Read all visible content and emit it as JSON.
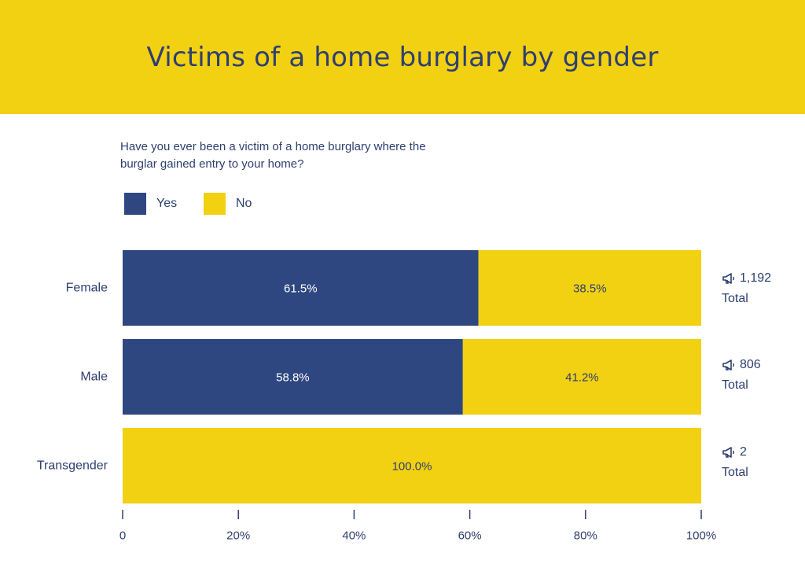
{
  "title": "Victims of a home burglary by gender",
  "question": "Have you ever been a victim of a home burglary where the burglar gained entry to your home?",
  "legend": [
    {
      "label": "Yes",
      "color": "#2e4780"
    },
    {
      "label": "No",
      "color": "#f2d012"
    }
  ],
  "totals": [
    {
      "value": "1,192",
      "label": "Total",
      "icon": "megaphone-icon"
    },
    {
      "value": "806",
      "label": "Total",
      "icon": "megaphone-icon"
    },
    {
      "value": "2",
      "label": "Total",
      "icon": "megaphone-icon"
    }
  ],
  "chart_data": {
    "type": "bar",
    "orientation": "horizontal",
    "stacked": true,
    "categories": [
      "Female",
      "Male",
      "Transgender"
    ],
    "series": [
      {
        "name": "Yes",
        "values": [
          61.5,
          58.8,
          0
        ],
        "labels": [
          "61.5%",
          "58.8%",
          ""
        ],
        "color": "#2e4780",
        "label_color": "#ffffff"
      },
      {
        "name": "No",
        "values": [
          38.5,
          41.2,
          100.0
        ],
        "labels": [
          "38.5%",
          "41.2%",
          "100.0%"
        ],
        "color": "#f2d012",
        "label_color": "#2e3f70"
      }
    ],
    "xlim": [
      0,
      100
    ],
    "ticks": [
      0,
      20,
      40,
      60,
      80,
      100
    ],
    "tick_labels": [
      "0",
      "20%",
      "40%",
      "60%",
      "80%",
      "100%"
    ],
    "legend_position": "top-left",
    "grid": false
  }
}
